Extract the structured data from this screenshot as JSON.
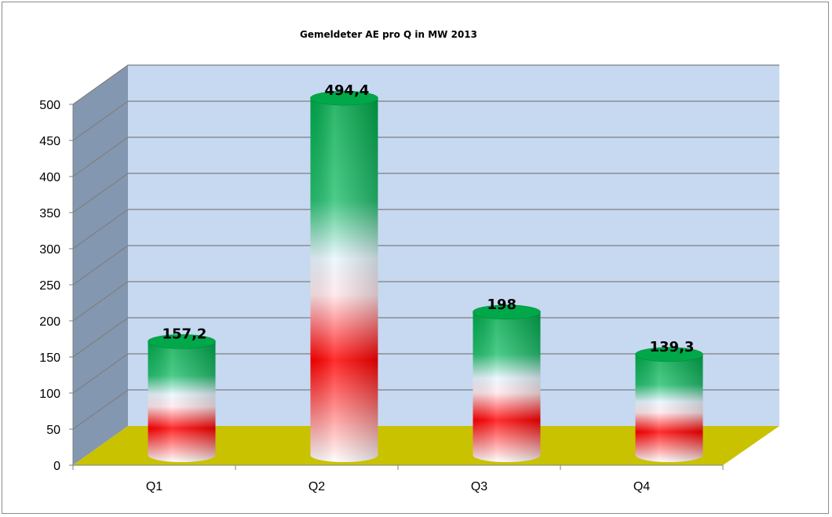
{
  "chart_data": {
    "type": "bar",
    "title": "Gemeldeter AE pro  Q  in  MW  2013",
    "categories": [
      "Q1",
      "Q2",
      "Q3",
      "Q4"
    ],
    "values": [
      157.2,
      494.4,
      198,
      139.3
    ],
    "value_labels": [
      "157,2",
      "494,4",
      "198",
      "139,3"
    ],
    "ylim": [
      0,
      500
    ],
    "yticks": [
      "0",
      "50",
      "100",
      "150",
      "200",
      "250",
      "300",
      "350",
      "400",
      "450",
      "500"
    ],
    "xlabel": "",
    "ylabel": "",
    "grid": true,
    "legend": "none",
    "style": "3d-cylinder",
    "colors": {
      "back_wall": "#c6d9f1",
      "side_wall": "#8497b0",
      "floor": "#c9c200",
      "gridline": "#7f7f7f",
      "bar_top": "#00b050",
      "bar_mid": "#ff0000",
      "bar_base": "#ffffff"
    }
  }
}
